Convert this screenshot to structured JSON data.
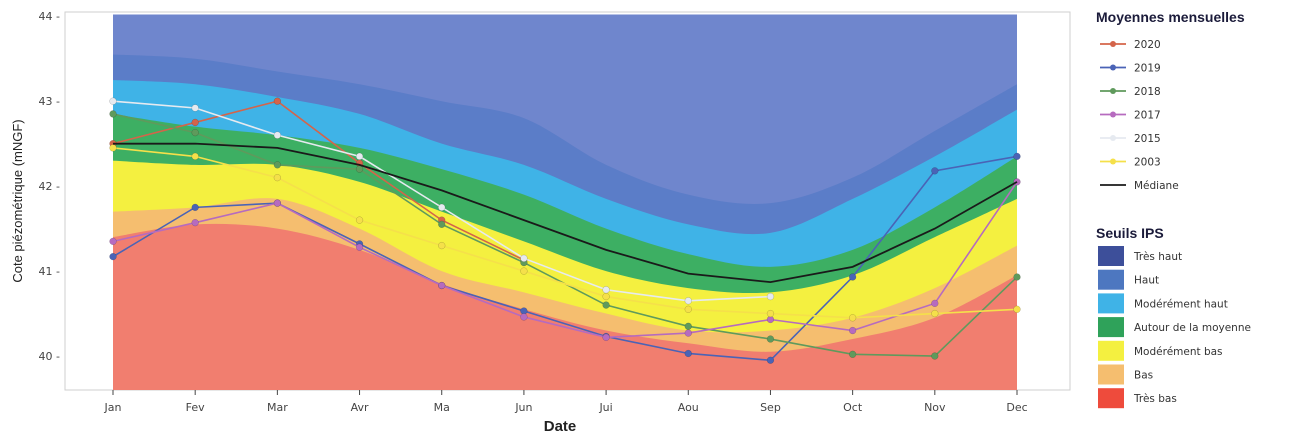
{
  "chart_data": {
    "type": "area",
    "xlabel": "Date",
    "ylabel": "Cote piézométrique (mNGF)",
    "ylim": [
      39.6,
      44.05
    ],
    "yticks": [
      40,
      41,
      42,
      43,
      44
    ],
    "yticklabels": [
      "40 -",
      "41 -",
      "42 -",
      "43 -",
      "44 -"
    ],
    "categories": [
      "Jan",
      "Fev",
      "Mar",
      "Avr",
      "Mai",
      "Jun",
      "Jul",
      "Aou",
      "Sep",
      "Oct",
      "Nov",
      "Dec"
    ],
    "category_labels": [
      "Jan",
      "Fev",
      "Mar",
      "Avr",
      "Ma",
      "Jun",
      "Jui",
      "Aou",
      "Sep",
      "Oct",
      "Nov",
      "Dec"
    ],
    "band_floor": 39.6,
    "band_ceiling": 44.02,
    "bands": [
      {
        "name": "Très haut",
        "color": "#6f86cd",
        "upper": [
          44.02,
          44.02,
          44.02,
          44.02,
          44.02,
          44.02,
          44.02,
          44.02,
          44.02,
          44.02,
          44.02,
          44.02
        ]
      },
      {
        "name": "Haut",
        "color": "#5b7dc8",
        "upper": [
          43.55,
          43.5,
          43.35,
          43.2,
          43.0,
          42.8,
          42.25,
          41.9,
          41.8,
          42.1,
          42.65,
          43.2
        ]
      },
      {
        "name": "Modérément haut",
        "color": "#3fb3e7",
        "upper": [
          43.25,
          43.2,
          43.05,
          42.85,
          42.5,
          42.25,
          41.85,
          41.55,
          41.45,
          41.85,
          42.35,
          42.9
        ]
      },
      {
        "name": "Autour de la moyenne",
        "color": "#3daf63",
        "upper": [
          42.85,
          42.7,
          42.6,
          42.45,
          42.2,
          41.9,
          41.5,
          41.2,
          41.05,
          41.25,
          41.75,
          42.35
        ]
      },
      {
        "name": "Modérément bas",
        "color": "#f4f040",
        "upper": [
          42.3,
          42.25,
          42.25,
          42.05,
          41.7,
          41.35,
          41.0,
          40.8,
          40.75,
          40.95,
          41.4,
          41.85
        ]
      },
      {
        "name": "Bas",
        "color": "#f5be6f",
        "upper": [
          41.7,
          41.75,
          41.85,
          41.5,
          41.0,
          40.75,
          40.5,
          40.3,
          40.3,
          40.45,
          40.8,
          41.3
        ]
      },
      {
        "name": "Très bas",
        "color": "#f17e6f",
        "upper": [
          41.4,
          41.55,
          41.5,
          41.25,
          40.85,
          40.55,
          40.3,
          40.15,
          40.05,
          40.2,
          40.45,
          40.95
        ]
      }
    ],
    "series": [
      {
        "name": "2020",
        "color": "#d4644a",
        "marker": "circle",
        "values": [
          42.5,
          42.75,
          43.0,
          42.27,
          41.6,
          41.13,
          null,
          null,
          null,
          null,
          null,
          null
        ]
      },
      {
        "name": "2019",
        "color": "#4a63b6",
        "marker": "circle",
        "values": [
          41.17,
          41.75,
          41.8,
          41.32,
          40.83,
          40.53,
          40.23,
          40.03,
          39.95,
          40.93,
          42.18,
          42.35
        ]
      },
      {
        "name": "2018",
        "color": "#5f9a5c",
        "marker": "circle",
        "values": [
          42.85,
          42.63,
          42.25,
          42.2,
          41.55,
          41.1,
          40.6,
          40.35,
          40.2,
          40.02,
          40.0,
          40.93
        ]
      },
      {
        "name": "2017",
        "color": "#b66bbf",
        "marker": "circle",
        "values": [
          41.35,
          41.57,
          41.8,
          41.28,
          40.83,
          40.46,
          40.22,
          40.27,
          40.43,
          40.3,
          40.62,
          42.05
        ]
      },
      {
        "name": "2015",
        "color": "#e6eaf0",
        "marker": "circle",
        "values": [
          43.0,
          42.92,
          42.6,
          42.35,
          41.75,
          41.15,
          40.78,
          40.65,
          40.7,
          null,
          null,
          null
        ]
      },
      {
        "name": "2003",
        "color": "#f5e04a",
        "marker": "circle",
        "values": [
          42.45,
          42.35,
          42.1,
          41.6,
          41.3,
          41.0,
          40.7,
          40.55,
          40.5,
          40.45,
          40.5,
          40.55
        ]
      },
      {
        "name": "Médiane",
        "color": "#1a1a1a",
        "marker": "none",
        "values": [
          42.5,
          42.5,
          42.45,
          42.25,
          41.95,
          41.6,
          41.25,
          40.97,
          40.87,
          41.05,
          41.5,
          42.05
        ]
      }
    ],
    "legend": {
      "series_title": "Moyennes mensuelles",
      "series_labels": [
        "2020",
        "2019",
        "2018",
        "2017",
        "2015",
        "2003",
        "Médiane"
      ],
      "bands_title": "Seuils IPS",
      "band_labels": [
        "Très haut",
        "Haut",
        "Modérément haut",
        "Autour de la moyenne",
        "Modérément bas",
        "Bas",
        "Très bas"
      ],
      "band_colors": [
        "#3d4f9a",
        "#4d77c0",
        "#3fb3e7",
        "#2fa25a",
        "#f4f040",
        "#f5be6f",
        "#ee4b3c"
      ],
      "placement": "right"
    },
    "grid": false
  }
}
